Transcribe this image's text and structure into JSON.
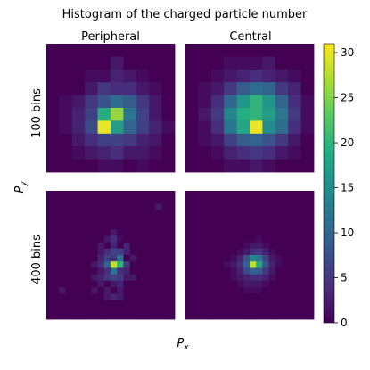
{
  "chart_data": {
    "type": "heatmap",
    "title": "Histogram of the charged particle number",
    "xlabel": "P",
    "xlabel_sub": "x",
    "ylabel": "P",
    "ylabel_sub": "y",
    "columns": [
      "Peripheral",
      "Central"
    ],
    "rows": [
      "100 bins",
      "400 bins"
    ],
    "colorbar": {
      "colormap": "viridis",
      "min": 0,
      "max": 31,
      "ticks": [
        "0",
        "5",
        "10",
        "15",
        "20",
        "25",
        "30"
      ]
    },
    "panels": [
      {
        "column": "Peripheral",
        "row": "100 bins",
        "grid": 10,
        "values": [
          [
            0,
            0,
            0,
            0,
            0,
            0,
            0,
            0,
            0,
            0
          ],
          [
            0,
            0,
            0,
            0,
            0,
            2,
            0,
            0,
            0,
            0
          ],
          [
            0,
            0,
            0,
            1,
            1,
            3,
            2,
            1,
            0,
            0
          ],
          [
            0,
            0,
            0,
            2,
            5,
            4,
            4,
            2,
            1,
            0
          ],
          [
            0,
            1,
            2,
            5,
            8,
            11,
            9,
            5,
            2,
            0
          ],
          [
            0,
            1,
            3,
            6,
            19,
            26,
            12,
            6,
            2,
            0
          ],
          [
            0,
            1,
            3,
            7,
            30,
            17,
            10,
            6,
            3,
            1
          ],
          [
            0,
            0,
            2,
            4,
            6,
            6,
            5,
            3,
            2,
            0
          ],
          [
            0,
            0,
            1,
            2,
            3,
            4,
            2,
            2,
            1,
            0
          ],
          [
            0,
            0,
            0,
            0,
            1,
            1,
            0,
            1,
            0,
            0
          ]
        ]
      },
      {
        "column": "Central",
        "row": "100 bins",
        "grid": 10,
        "values": [
          [
            0,
            0,
            0,
            0,
            0,
            0,
            0,
            0,
            0,
            0
          ],
          [
            0,
            0,
            0,
            1,
            1,
            1,
            2,
            0,
            0,
            0
          ],
          [
            0,
            0,
            1,
            2,
            3,
            4,
            3,
            2,
            1,
            0
          ],
          [
            0,
            1,
            2,
            5,
            9,
            11,
            10,
            5,
            3,
            0
          ],
          [
            0,
            1,
            4,
            10,
            16,
            20,
            16,
            10,
            4,
            1
          ],
          [
            0,
            2,
            5,
            14,
            19,
            20,
            17,
            12,
            5,
            1
          ],
          [
            0,
            1,
            4,
            12,
            18,
            30,
            15,
            11,
            4,
            1
          ],
          [
            0,
            1,
            2,
            6,
            9,
            10,
            8,
            5,
            2,
            0
          ],
          [
            0,
            0,
            1,
            3,
            4,
            5,
            4,
            2,
            1,
            0
          ],
          [
            0,
            0,
            0,
            1,
            1,
            2,
            1,
            0,
            0,
            0
          ]
        ]
      },
      {
        "column": "Peripheral",
        "row": "400 bins",
        "grid": 20,
        "values": [
          [
            0,
            0,
            0,
            0,
            0,
            0,
            0,
            0,
            0,
            0,
            0,
            0,
            0,
            0,
            0,
            0,
            0,
            0,
            0,
            0
          ],
          [
            0,
            0,
            0,
            0,
            0,
            0,
            0,
            0,
            0,
            0,
            0,
            0,
            0,
            0,
            0,
            0,
            0,
            0,
            0,
            0
          ],
          [
            0,
            0,
            0,
            0,
            0,
            0,
            0,
            0,
            0,
            0,
            0,
            0,
            0,
            0,
            0,
            0,
            0,
            2,
            0,
            0
          ],
          [
            0,
            0,
            0,
            0,
            0,
            0,
            0,
            0,
            0,
            0,
            0,
            0,
            0,
            0,
            0,
            0,
            0,
            0,
            0,
            0
          ],
          [
            0,
            0,
            0,
            0,
            0,
            0,
            0,
            0,
            0,
            0,
            0,
            0,
            0,
            0,
            0,
            0,
            0,
            0,
            0,
            0
          ],
          [
            0,
            0,
            0,
            0,
            0,
            0,
            0,
            0,
            0,
            0,
            0,
            0,
            0,
            0,
            0,
            0,
            0,
            0,
            0,
            0
          ],
          [
            0,
            0,
            0,
            0,
            0,
            0,
            0,
            0,
            0,
            0,
            2,
            0,
            0,
            0,
            0,
            0,
            0,
            0,
            0,
            0
          ],
          [
            0,
            0,
            0,
            0,
            0,
            0,
            0,
            0,
            0,
            2,
            4,
            1,
            0,
            0,
            0,
            0,
            0,
            0,
            0,
            0
          ],
          [
            0,
            0,
            0,
            0,
            0,
            0,
            0,
            0,
            2,
            0,
            3,
            0,
            3,
            0,
            0,
            0,
            0,
            0,
            0,
            0
          ],
          [
            0,
            0,
            0,
            0,
            0,
            0,
            0,
            0,
            2,
            4,
            6,
            6,
            3,
            0,
            0,
            0,
            0,
            0,
            0,
            0
          ],
          [
            0,
            0,
            0,
            0,
            0,
            0,
            0,
            0,
            3,
            6,
            5,
            12,
            0,
            2,
            0,
            0,
            0,
            0,
            0,
            0
          ],
          [
            0,
            0,
            0,
            0,
            0,
            0,
            0,
            2,
            4,
            10,
            28,
            20,
            5,
            0,
            0,
            0,
            0,
            0,
            0,
            0
          ],
          [
            0,
            0,
            0,
            0,
            0,
            0,
            0,
            0,
            2,
            4,
            12,
            4,
            3,
            0,
            0,
            0,
            0,
            0,
            0,
            0
          ],
          [
            0,
            0,
            0,
            0,
            0,
            0,
            0,
            2,
            3,
            5,
            6,
            5,
            2,
            2,
            0,
            0,
            0,
            0,
            0,
            0
          ],
          [
            0,
            0,
            0,
            0,
            0,
            0,
            0,
            0,
            2,
            0,
            2,
            3,
            0,
            0,
            0,
            0,
            0,
            0,
            0,
            0
          ],
          [
            0,
            0,
            2,
            0,
            0,
            0,
            0,
            2,
            0,
            2,
            0,
            2,
            0,
            0,
            0,
            0,
            0,
            0,
            0,
            0
          ],
          [
            0,
            0,
            0,
            0,
            0,
            0,
            0,
            0,
            0,
            2,
            3,
            2,
            0,
            0,
            0,
            0,
            0,
            0,
            0,
            0
          ],
          [
            0,
            0,
            0,
            0,
            0,
            0,
            0,
            0,
            0,
            0,
            0,
            0,
            0,
            0,
            0,
            0,
            0,
            0,
            0,
            0
          ],
          [
            0,
            0,
            0,
            0,
            0,
            0,
            0,
            0,
            0,
            0,
            0,
            0,
            0,
            0,
            0,
            0,
            0,
            0,
            0,
            0
          ],
          [
            0,
            0,
            0,
            0,
            0,
            0,
            0,
            0,
            0,
            0,
            0,
            0,
            0,
            0,
            0,
            0,
            0,
            0,
            0,
            0
          ]
        ]
      },
      {
        "column": "Central",
        "row": "400 bins",
        "grid": 20,
        "values": [
          [
            0,
            0,
            0,
            0,
            0,
            0,
            0,
            0,
            0,
            0,
            0,
            0,
            0,
            0,
            0,
            0,
            0,
            0,
            0,
            0
          ],
          [
            0,
            0,
            0,
            0,
            0,
            0,
            0,
            0,
            0,
            0,
            0,
            0,
            0,
            0,
            0,
            0,
            0,
            0,
            0,
            0
          ],
          [
            0,
            0,
            0,
            0,
            0,
            0,
            0,
            0,
            0,
            0,
            0,
            0,
            0,
            0,
            0,
            0,
            0,
            0,
            0,
            0
          ],
          [
            0,
            0,
            0,
            0,
            0,
            0,
            0,
            0,
            0,
            0,
            0,
            0,
            0,
            0,
            0,
            0,
            0,
            0,
            0,
            0
          ],
          [
            0,
            0,
            0,
            0,
            0,
            0,
            0,
            0,
            0,
            0,
            0,
            0,
            0,
            0,
            0,
            0,
            0,
            0,
            0,
            0
          ],
          [
            0,
            0,
            0,
            0,
            0,
            0,
            0,
            0,
            0,
            0,
            0,
            0,
            0,
            0,
            0,
            0,
            0,
            0,
            0,
            0
          ],
          [
            0,
            0,
            0,
            0,
            0,
            0,
            0,
            0,
            0,
            0,
            0,
            0,
            0,
            0,
            0,
            0,
            0,
            0,
            0,
            0
          ],
          [
            0,
            0,
            0,
            0,
            0,
            0,
            0,
            0,
            0,
            0,
            0,
            1,
            0,
            0,
            0,
            0,
            0,
            0,
            0,
            0
          ],
          [
            0,
            0,
            0,
            0,
            0,
            0,
            0,
            0,
            0,
            1,
            2,
            2,
            1,
            0,
            0,
            0,
            0,
            0,
            0,
            0
          ],
          [
            0,
            0,
            0,
            0,
            0,
            0,
            0,
            0,
            1,
            2,
            4,
            5,
            3,
            1,
            0,
            0,
            0,
            0,
            0,
            0
          ],
          [
            0,
            0,
            0,
            0,
            0,
            0,
            0,
            1,
            3,
            8,
            14,
            12,
            6,
            2,
            1,
            0,
            0,
            0,
            0,
            0
          ],
          [
            0,
            0,
            0,
            0,
            0,
            0,
            1,
            2,
            4,
            10,
            28,
            18,
            8,
            3,
            1,
            0,
            0,
            0,
            0,
            0
          ],
          [
            0,
            0,
            0,
            0,
            0,
            0,
            0,
            1,
            3,
            7,
            10,
            9,
            5,
            2,
            0,
            0,
            0,
            0,
            0,
            0
          ],
          [
            0,
            0,
            0,
            0,
            0,
            0,
            0,
            1,
            2,
            3,
            4,
            4,
            3,
            1,
            0,
            0,
            0,
            0,
            0,
            0
          ],
          [
            0,
            0,
            0,
            0,
            0,
            0,
            0,
            0,
            1,
            2,
            2,
            2,
            1,
            0,
            0,
            0,
            0,
            0,
            0,
            0
          ],
          [
            0,
            0,
            0,
            0,
            0,
            0,
            0,
            0,
            0,
            1,
            1,
            1,
            0,
            0,
            0,
            0,
            0,
            0,
            0,
            0
          ],
          [
            0,
            0,
            0,
            0,
            0,
            0,
            0,
            0,
            0,
            0,
            0,
            0,
            0,
            0,
            0,
            0,
            0,
            0,
            0,
            0
          ],
          [
            0,
            0,
            0,
            0,
            0,
            0,
            0,
            0,
            0,
            0,
            0,
            0,
            0,
            0,
            0,
            0,
            0,
            0,
            0,
            0
          ],
          [
            0,
            0,
            0,
            0,
            0,
            0,
            0,
            0,
            0,
            0,
            0,
            0,
            0,
            0,
            0,
            0,
            0,
            0,
            0,
            0
          ],
          [
            0,
            0,
            0,
            0,
            0,
            0,
            0,
            0,
            0,
            0,
            0,
            0,
            0,
            0,
            0,
            0,
            0,
            0,
            0,
            0
          ]
        ]
      }
    ]
  }
}
